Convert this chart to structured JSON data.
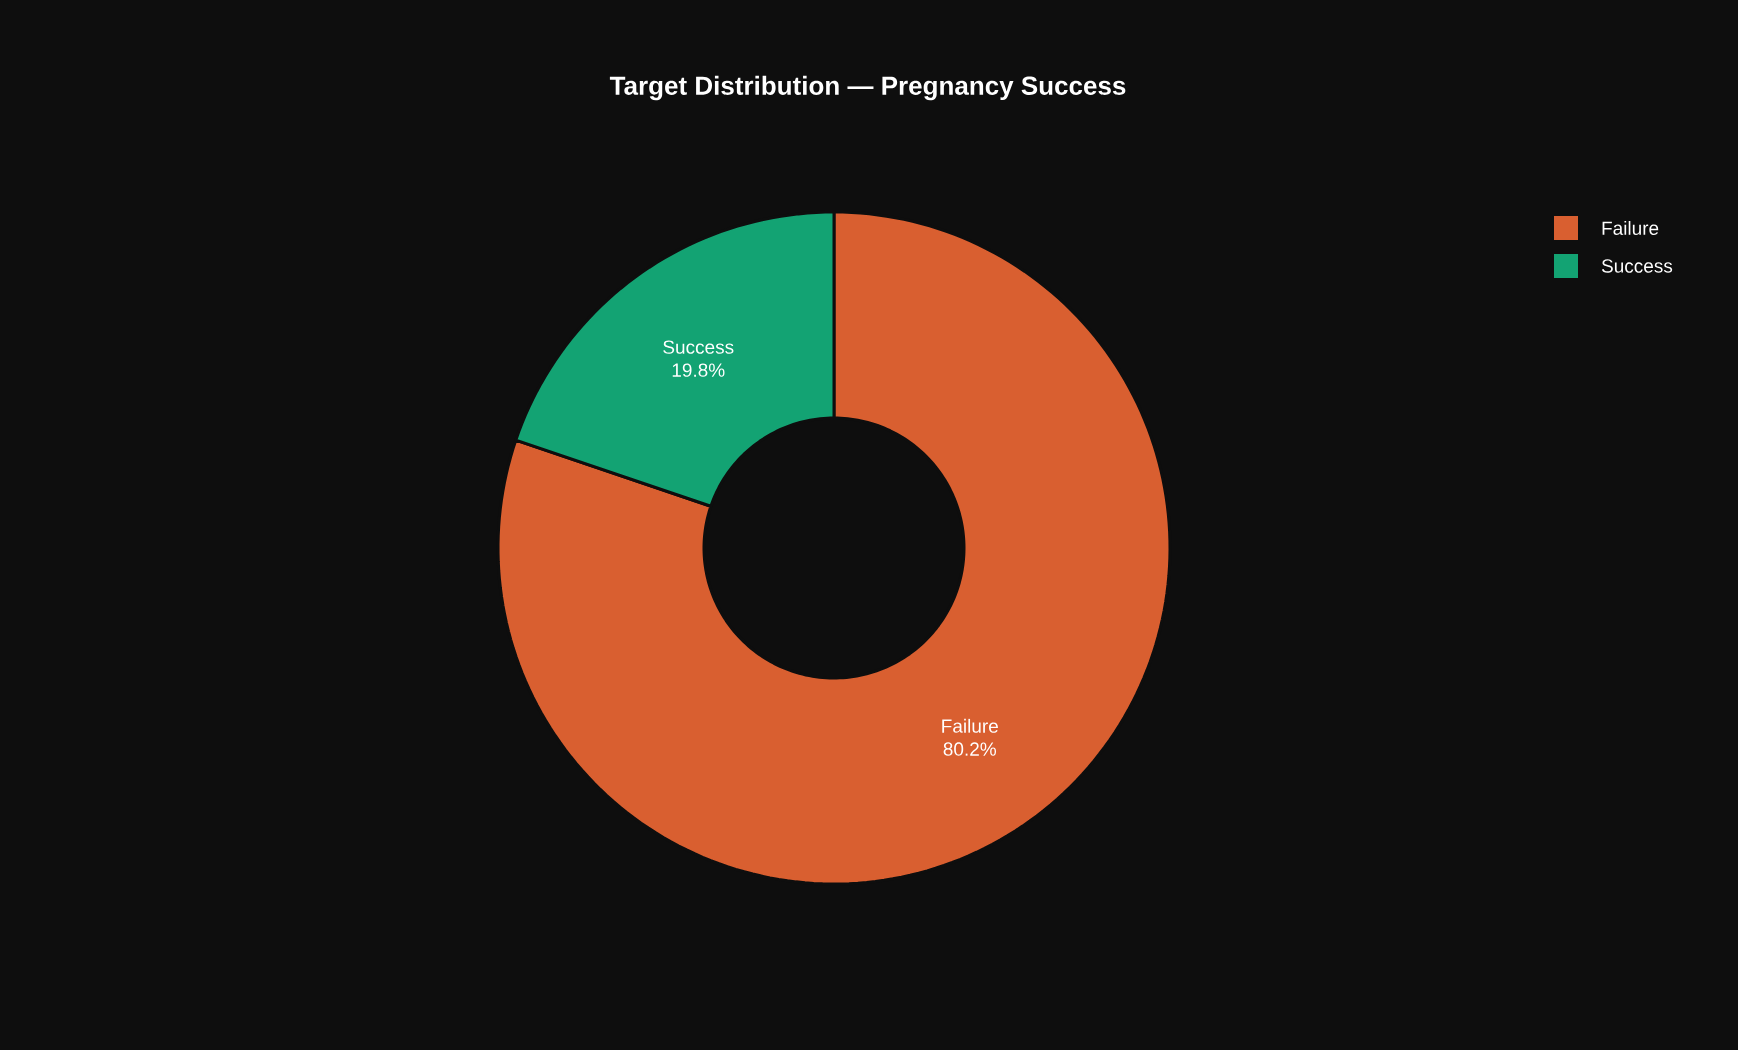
{
  "chart_data": {
    "type": "donut",
    "title": "Target Distribution — Pregnancy Success",
    "categories": [
      "Failure",
      "Success"
    ],
    "values": [
      80.2,
      19.8
    ],
    "value_labels": [
      "80.2%",
      "19.8%"
    ],
    "colors": [
      "#d95f30",
      "#13a373"
    ],
    "legend": "top right"
  }
}
